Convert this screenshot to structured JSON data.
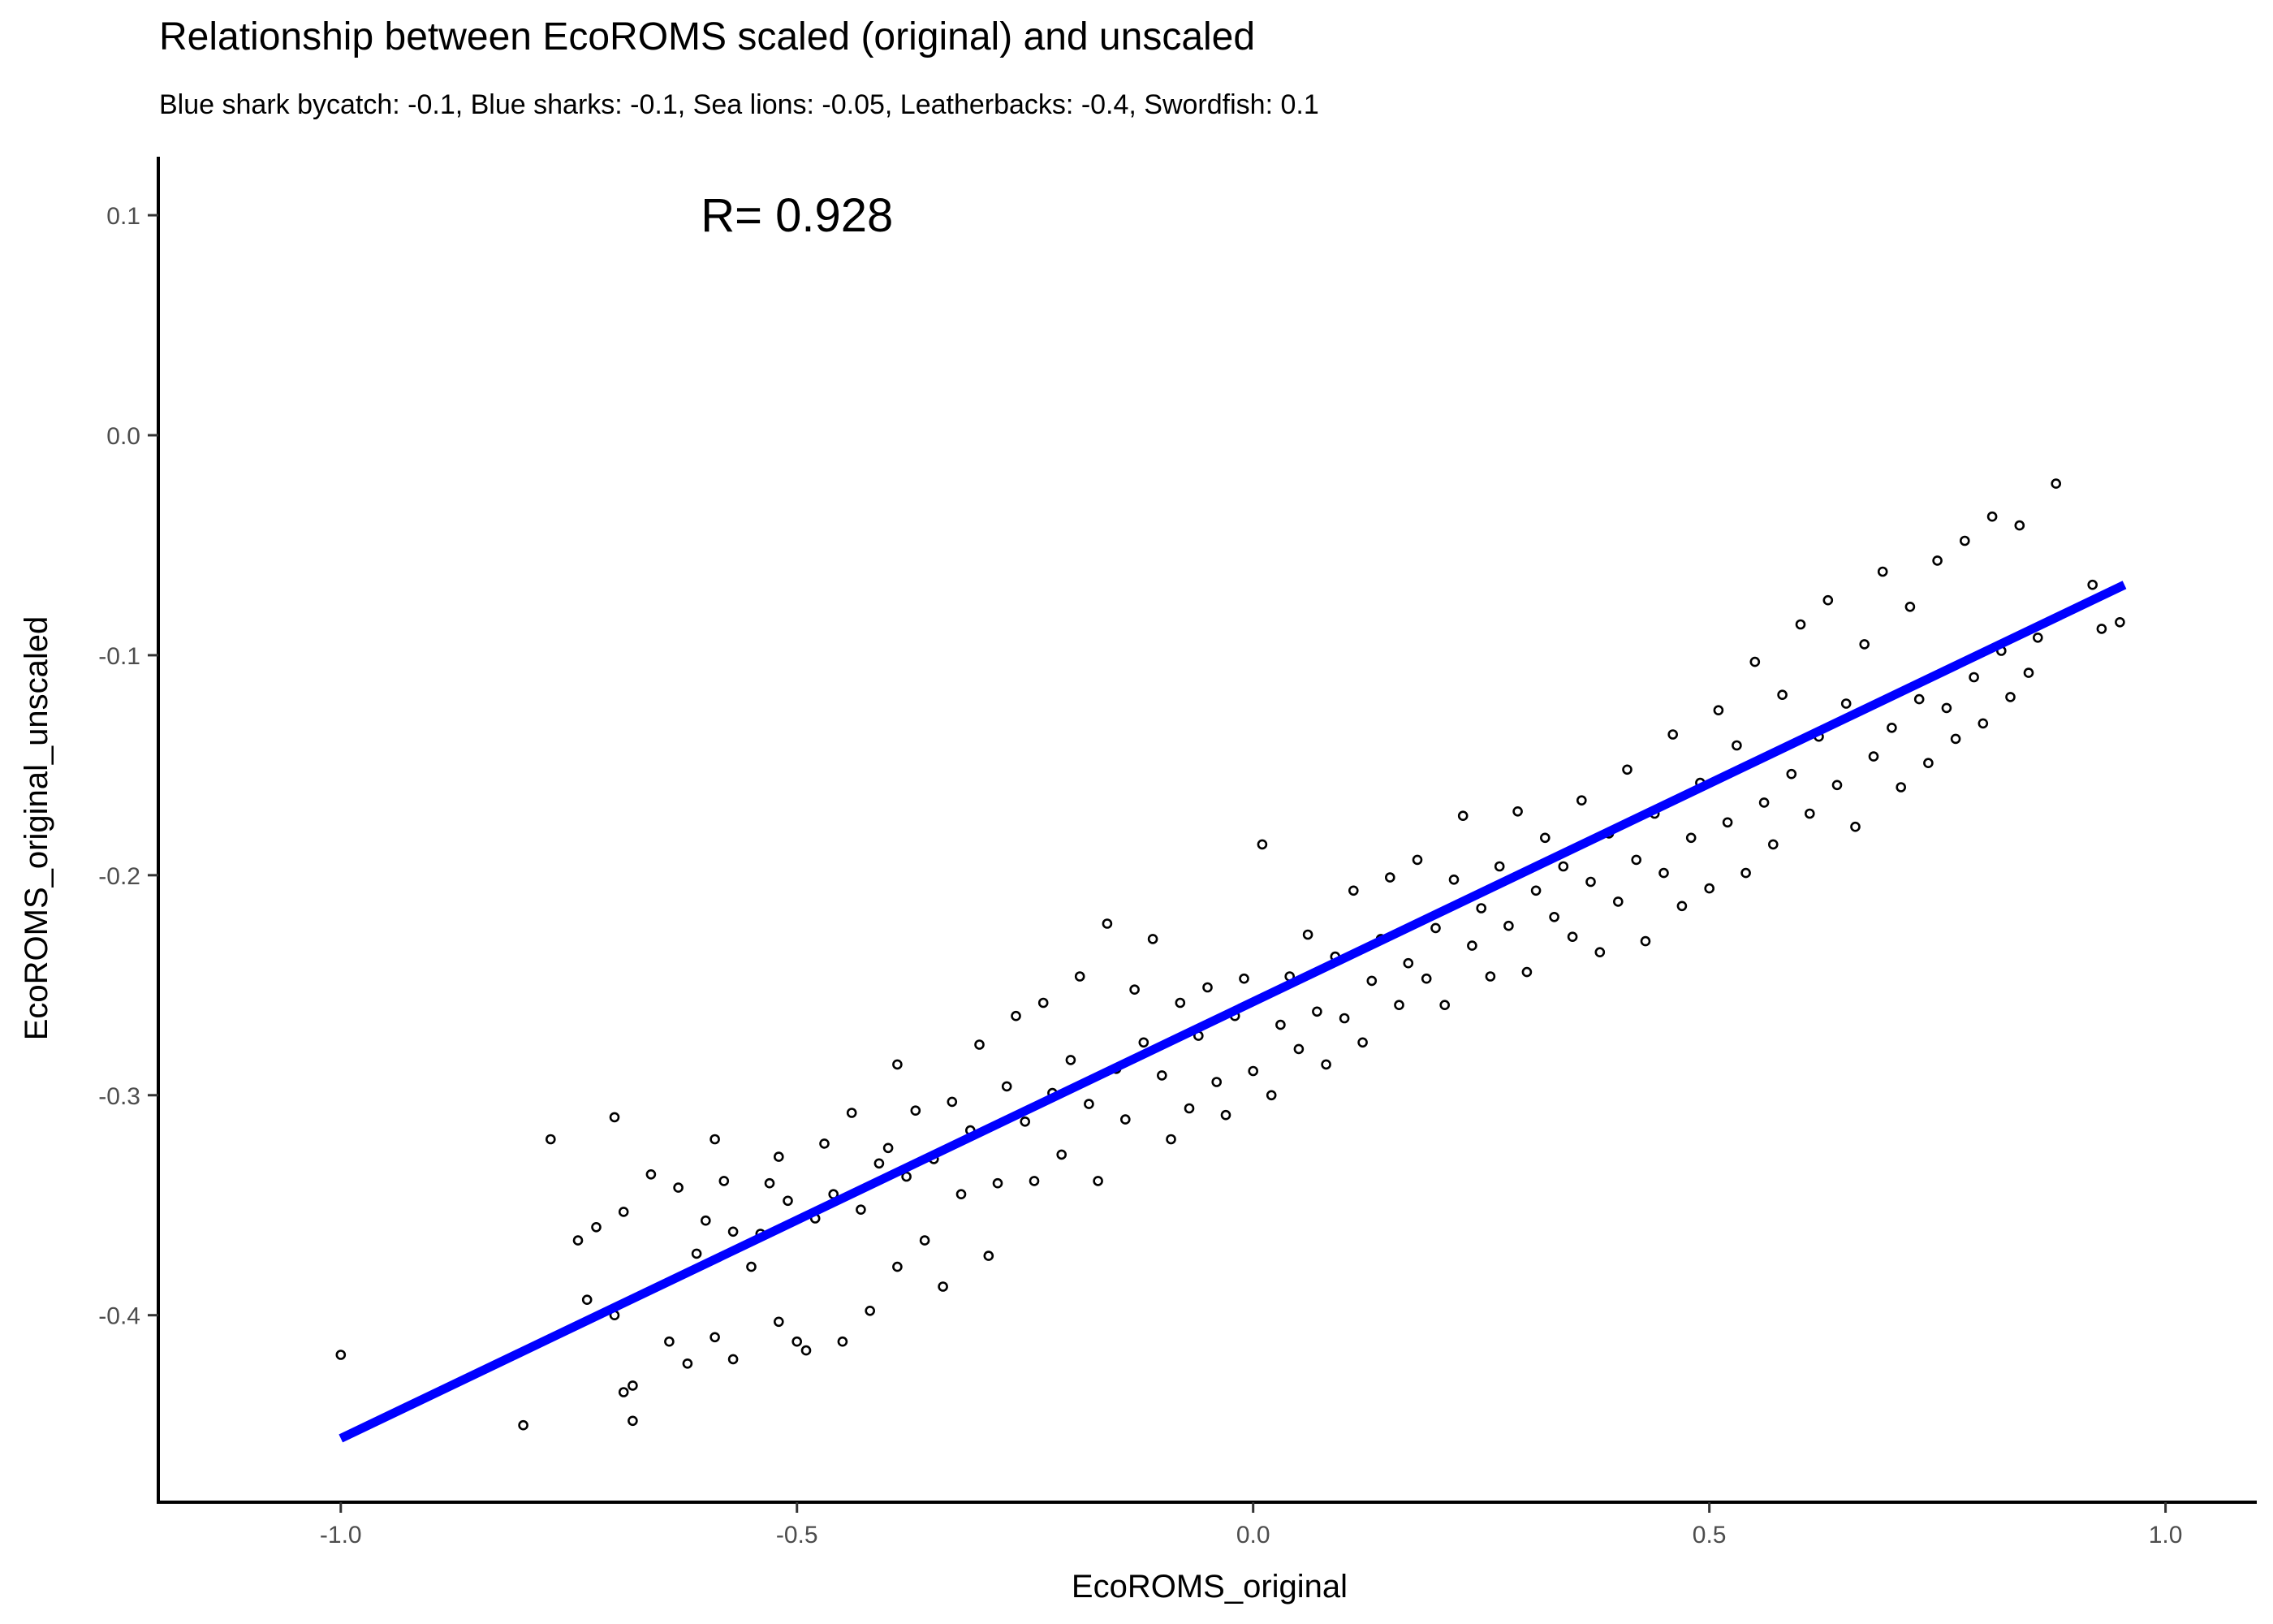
{
  "chart_data": {
    "type": "scatter",
    "title": "Relationship between EcoROMS scaled (original) and unscaled",
    "subtitle": "Blue shark bycatch: -0.1, Blue sharks: -0.1, Sea lions: -0.05, Leatherbacks: -0.4, Swordfish: 0.1",
    "xlabel": "EcoROMS_original",
    "ylabel": "EcoROMS_original_unscaled",
    "xlim": [
      -1.2,
      1.1
    ],
    "ylim": [
      -0.485,
      0.1266
    ],
    "x_ticks": [
      -1.0,
      -0.5,
      0.0,
      0.5,
      1.0
    ],
    "x_tick_labels": [
      "-1.0",
      "-0.5",
      "0.0",
      "0.5",
      "1.0"
    ],
    "y_ticks": [
      0.1,
      0.0,
      -0.1,
      -0.2,
      -0.3,
      -0.4
    ],
    "y_tick_labels": [
      "0.1",
      "0.0",
      "-0.1",
      "-0.2",
      "-0.3",
      "-0.4"
    ],
    "annotation": {
      "text": "R= 0.928",
      "x": -0.5,
      "y": 0.1
    },
    "fit_line": {
      "color": "#0000ff",
      "points": [
        {
          "x": -1.0,
          "y": -0.456
        },
        {
          "x": 0.955,
          "y": -0.068
        }
      ]
    },
    "grid": false,
    "legend": "none",
    "marker": {
      "shape": "open-circle",
      "color": "#000000"
    },
    "series": [
      {
        "points": [
          [
            -1.0,
            -0.418
          ],
          [
            -0.8,
            -0.45
          ],
          [
            -0.77,
            -0.32
          ],
          [
            -0.74,
            -0.366
          ],
          [
            -0.73,
            -0.393
          ],
          [
            -0.72,
            -0.36
          ],
          [
            -0.7,
            -0.31
          ],
          [
            -0.7,
            -0.4
          ],
          [
            -0.69,
            -0.353
          ],
          [
            -0.69,
            -0.435
          ],
          [
            -0.68,
            -0.432
          ],
          [
            -0.68,
            -0.448
          ],
          [
            -0.66,
            -0.336
          ],
          [
            -0.64,
            -0.412
          ],
          [
            -0.63,
            -0.342
          ],
          [
            -0.62,
            -0.422
          ],
          [
            -0.61,
            -0.372
          ],
          [
            -0.6,
            -0.357
          ],
          [
            -0.59,
            -0.32
          ],
          [
            -0.59,
            -0.41
          ],
          [
            -0.58,
            -0.339
          ],
          [
            -0.57,
            -0.362
          ],
          [
            -0.57,
            -0.42
          ],
          [
            -0.55,
            -0.378
          ],
          [
            -0.54,
            -0.363
          ],
          [
            -0.53,
            -0.34
          ],
          [
            -0.52,
            -0.328
          ],
          [
            -0.52,
            -0.403
          ],
          [
            -0.51,
            -0.348
          ],
          [
            -0.5,
            -0.412
          ],
          [
            -0.49,
            -0.416
          ],
          [
            -0.48,
            -0.356
          ],
          [
            -0.47,
            -0.322
          ],
          [
            -0.46,
            -0.345
          ],
          [
            -0.45,
            -0.412
          ],
          [
            -0.44,
            -0.308
          ],
          [
            -0.43,
            -0.352
          ],
          [
            -0.42,
            -0.398
          ],
          [
            -0.41,
            -0.331
          ],
          [
            -0.4,
            -0.324
          ],
          [
            -0.39,
            -0.286
          ],
          [
            -0.39,
            -0.378
          ],
          [
            -0.38,
            -0.337
          ],
          [
            -0.37,
            -0.307
          ],
          [
            -0.36,
            -0.366
          ],
          [
            -0.35,
            -0.329
          ],
          [
            -0.34,
            -0.387
          ],
          [
            -0.33,
            -0.303
          ],
          [
            -0.32,
            -0.345
          ],
          [
            -0.31,
            -0.316
          ],
          [
            -0.3,
            -0.277
          ],
          [
            -0.29,
            -0.373
          ],
          [
            -0.28,
            -0.34
          ],
          [
            -0.27,
            -0.296
          ],
          [
            -0.26,
            -0.264
          ],
          [
            -0.25,
            -0.312
          ],
          [
            -0.24,
            -0.339
          ],
          [
            -0.23,
            -0.258
          ],
          [
            -0.22,
            -0.299
          ],
          [
            -0.21,
            -0.327
          ],
          [
            -0.2,
            -0.284
          ],
          [
            -0.19,
            -0.246
          ],
          [
            -0.18,
            -0.304
          ],
          [
            -0.17,
            -0.339
          ],
          [
            -0.16,
            -0.222
          ],
          [
            -0.15,
            -0.288
          ],
          [
            -0.14,
            -0.311
          ],
          [
            -0.13,
            -0.252
          ],
          [
            -0.12,
            -0.276
          ],
          [
            -0.11,
            -0.229
          ],
          [
            -0.1,
            -0.291
          ],
          [
            -0.09,
            -0.32
          ],
          [
            -0.08,
            -0.258
          ],
          [
            -0.07,
            -0.306
          ],
          [
            -0.06,
            -0.273
          ],
          [
            -0.05,
            -0.251
          ],
          [
            -0.04,
            -0.294
          ],
          [
            -0.03,
            -0.309
          ],
          [
            -0.02,
            -0.264
          ],
          [
            -0.01,
            -0.247
          ],
          [
            0.0,
            -0.289
          ],
          [
            0.01,
            -0.186
          ],
          [
            0.02,
            -0.3
          ],
          [
            0.03,
            -0.268
          ],
          [
            0.04,
            -0.246
          ],
          [
            0.05,
            -0.279
          ],
          [
            0.06,
            -0.227
          ],
          [
            0.07,
            -0.262
          ],
          [
            0.08,
            -0.286
          ],
          [
            0.09,
            -0.237
          ],
          [
            0.1,
            -0.265
          ],
          [
            0.11,
            -0.207
          ],
          [
            0.12,
            -0.276
          ],
          [
            0.13,
            -0.248
          ],
          [
            0.14,
            -0.229
          ],
          [
            0.15,
            -0.201
          ],
          [
            0.16,
            -0.259
          ],
          [
            0.17,
            -0.24
          ],
          [
            0.18,
            -0.193
          ],
          [
            0.19,
            -0.247
          ],
          [
            0.2,
            -0.224
          ],
          [
            0.21,
            -0.259
          ],
          [
            0.22,
            -0.202
          ],
          [
            0.23,
            -0.173
          ],
          [
            0.24,
            -0.232
          ],
          [
            0.25,
            -0.215
          ],
          [
            0.26,
            -0.246
          ],
          [
            0.27,
            -0.196
          ],
          [
            0.28,
            -0.223
          ],
          [
            0.29,
            -0.171
          ],
          [
            0.3,
            -0.244
          ],
          [
            0.31,
            -0.207
          ],
          [
            0.32,
            -0.183
          ],
          [
            0.33,
            -0.219
          ],
          [
            0.34,
            -0.196
          ],
          [
            0.35,
            -0.228
          ],
          [
            0.36,
            -0.166
          ],
          [
            0.37,
            -0.203
          ],
          [
            0.38,
            -0.235
          ],
          [
            0.39,
            -0.181
          ],
          [
            0.4,
            -0.212
          ],
          [
            0.41,
            -0.152
          ],
          [
            0.42,
            -0.193
          ],
          [
            0.43,
            -0.23
          ],
          [
            0.44,
            -0.172
          ],
          [
            0.45,
            -0.199
          ],
          [
            0.46,
            -0.136
          ],
          [
            0.47,
            -0.214
          ],
          [
            0.48,
            -0.183
          ],
          [
            0.49,
            -0.158
          ],
          [
            0.5,
            -0.206
          ],
          [
            0.51,
            -0.125
          ],
          [
            0.52,
            -0.176
          ],
          [
            0.53,
            -0.141
          ],
          [
            0.54,
            -0.199
          ],
          [
            0.55,
            -0.103
          ],
          [
            0.56,
            -0.167
          ],
          [
            0.57,
            -0.186
          ],
          [
            0.58,
            -0.118
          ],
          [
            0.59,
            -0.154
          ],
          [
            0.6,
            -0.086
          ],
          [
            0.61,
            -0.172
          ],
          [
            0.62,
            -0.137
          ],
          [
            0.63,
            -0.075
          ],
          [
            0.64,
            -0.159
          ],
          [
            0.65,
            -0.122
          ],
          [
            0.66,
            -0.178
          ],
          [
            0.67,
            -0.095
          ],
          [
            0.68,
            -0.146
          ],
          [
            0.69,
            -0.062
          ],
          [
            0.7,
            -0.133
          ],
          [
            0.71,
            -0.16
          ],
          [
            0.72,
            -0.078
          ],
          [
            0.73,
            -0.12
          ],
          [
            0.74,
            -0.149
          ],
          [
            0.75,
            -0.057
          ],
          [
            0.76,
            -0.124
          ],
          [
            0.77,
            -0.138
          ],
          [
            0.78,
            -0.048
          ],
          [
            0.79,
            -0.11
          ],
          [
            0.8,
            -0.131
          ],
          [
            0.81,
            -0.037
          ],
          [
            0.82,
            -0.098
          ],
          [
            0.83,
            -0.119
          ],
          [
            0.84,
            -0.041
          ],
          [
            0.85,
            -0.108
          ],
          [
            0.86,
            -0.092
          ],
          [
            0.88,
            -0.022
          ],
          [
            0.92,
            -0.068
          ],
          [
            0.93,
            -0.088
          ],
          [
            0.95,
            -0.085
          ]
        ]
      }
    ]
  }
}
